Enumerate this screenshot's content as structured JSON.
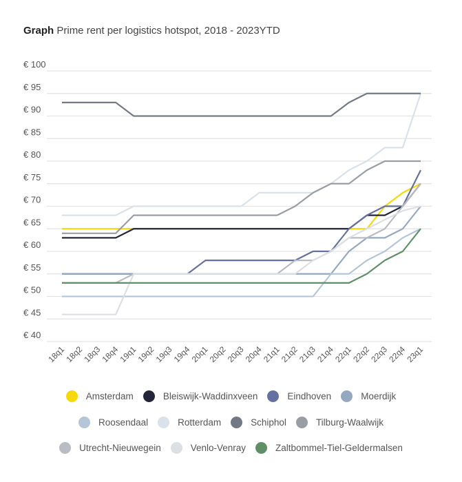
{
  "title": {
    "bold": "Graph",
    "text": "Prime rent per logistics hotspot, 2018 - 2023YTD"
  },
  "chart_data": {
    "type": "line",
    "title": "Prime rent per logistics hotspot, 2018 - 2023YTD",
    "xlabel": "",
    "ylabel": "",
    "ylim": [
      40,
      100
    ],
    "yticks": [
      40,
      45,
      50,
      55,
      60,
      65,
      70,
      75,
      80,
      85,
      90,
      95,
      100
    ],
    "ytick_labels": [
      "€ 40",
      "€ 45",
      "€ 50",
      "€ 55",
      "€ 60",
      "€ 65",
      "€ 70",
      "€ 75",
      "€ 80",
      "€ 85",
      "€ 90",
      "€ 95",
      "€ 100"
    ],
    "grid": true,
    "legend": "bottom",
    "categories": [
      "18q1",
      "18q2",
      "18q3",
      "18q4",
      "19q1",
      "19q2",
      "19q3",
      "19q4",
      "20q1",
      "20q2",
      "20q3",
      "20q4",
      "21q1",
      "21q2",
      "21q3",
      "21q4",
      "22q1",
      "22q2",
      "22q3",
      "22q4",
      "23q1"
    ],
    "series": [
      {
        "name": "Amsterdam",
        "color": "#f5d90a",
        "values": [
          65,
          65,
          65,
          65,
          65,
          65,
          65,
          65,
          65,
          65,
          65,
          65,
          65,
          65,
          65,
          65,
          65,
          65,
          70,
          73,
          75
        ]
      },
      {
        "name": "Bleiswijk-Waddinxveen",
        "color": "#23263a",
        "values": [
          63,
          63,
          63,
          63,
          65,
          65,
          65,
          65,
          65,
          65,
          65,
          65,
          65,
          65,
          65,
          65,
          65,
          68,
          68,
          70,
          75
        ]
      },
      {
        "name": "Eindhoven",
        "color": "#66709e",
        "values": [
          55,
          55,
          55,
          55,
          55,
          55,
          55,
          55,
          58,
          58,
          58,
          58,
          58,
          58,
          60,
          60,
          65,
          68,
          70,
          70,
          78
        ]
      },
      {
        "name": "Moerdijk",
        "color": "#94a8c0",
        "values": [
          55,
          55,
          55,
          55,
          55,
          55,
          55,
          55,
          55,
          55,
          55,
          55,
          55,
          55,
          55,
          55,
          60,
          63,
          63,
          65,
          70
        ]
      },
      {
        "name": "Roosendaal",
        "color": "#b5c6d8",
        "values": [
          50,
          50,
          50,
          50,
          50,
          50,
          50,
          50,
          50,
          50,
          50,
          50,
          50,
          50,
          50,
          55,
          55,
          58,
          60,
          63,
          65
        ]
      },
      {
        "name": "Rotterdam",
        "color": "#d9e1ea",
        "values": [
          68,
          68,
          68,
          68,
          70,
          70,
          70,
          70,
          70,
          70,
          70,
          73,
          73,
          73,
          73,
          75,
          78,
          80,
          83,
          83,
          95
        ]
      },
      {
        "name": "Schiphol",
        "color": "#727985",
        "values": [
          93,
          93,
          93,
          93,
          90,
          90,
          90,
          90,
          90,
          90,
          90,
          90,
          90,
          90,
          90,
          90,
          93,
          95,
          95,
          95,
          95
        ]
      },
      {
        "name": "Tilburg-Waalwijk",
        "color": "#999ea5",
        "values": [
          64,
          64,
          64,
          64,
          68,
          68,
          68,
          68,
          68,
          68,
          68,
          68,
          68,
          70,
          73,
          75,
          75,
          78,
          80,
          80,
          80
        ]
      },
      {
        "name": "Utrecht-Nieuwegein",
        "color": "#b9bcc2",
        "values": [
          53,
          53,
          53,
          53,
          55,
          55,
          55,
          55,
          55,
          55,
          55,
          55,
          55,
          58,
          58,
          60,
          63,
          63,
          65,
          70,
          75
        ]
      },
      {
        "name": "Venlo-Venray",
        "color": "#dcdfe3",
        "values": [
          46,
          46,
          46,
          46,
          55,
          55,
          55,
          55,
          55,
          55,
          55,
          55,
          55,
          55,
          58,
          60,
          63,
          65,
          67,
          69,
          70
        ]
      },
      {
        "name": "Zaltbommel-Tiel-Geldermalsen",
        "color": "#5f8f66",
        "values": [
          53,
          53,
          53,
          53,
          53,
          53,
          53,
          53,
          53,
          53,
          53,
          53,
          53,
          53,
          53,
          53,
          53,
          55,
          58,
          60,
          65
        ]
      }
    ]
  }
}
